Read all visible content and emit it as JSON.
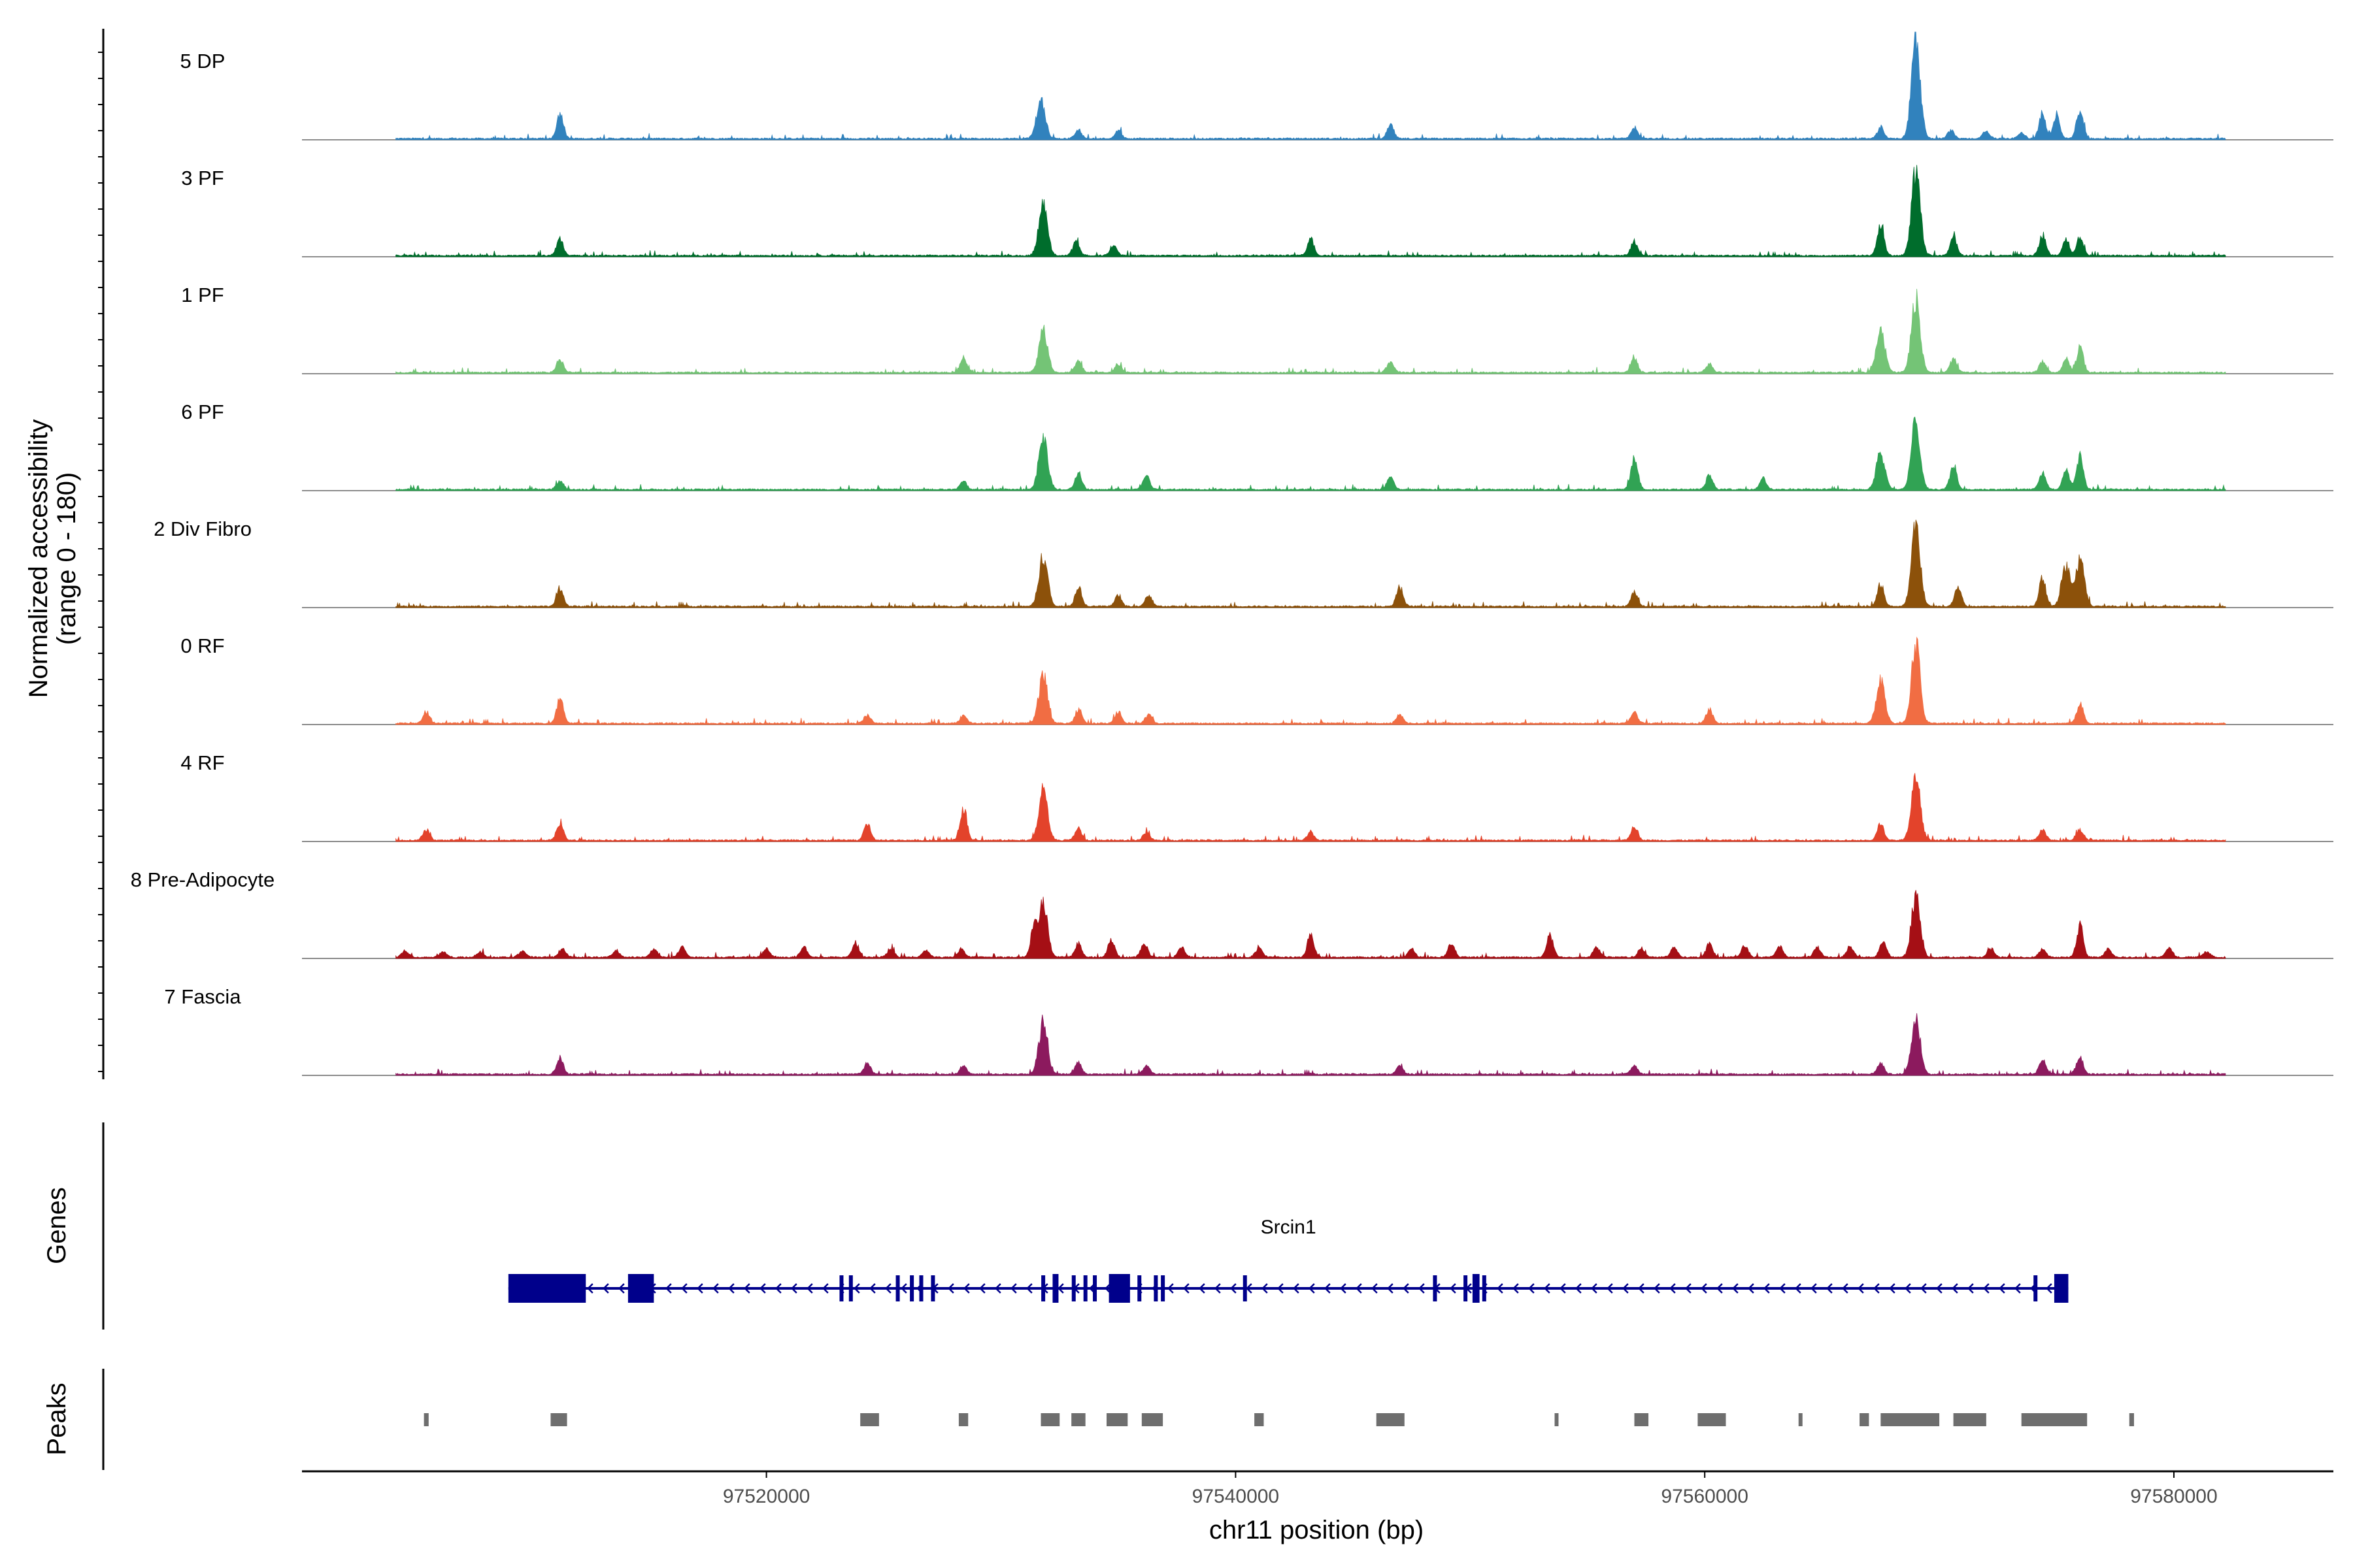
{
  "colors": {
    "baseline": "#8c8c8c",
    "axis": "#000000",
    "gene": "#00008b",
    "peak": "#6e6e6e",
    "tick_text": "#4d4d4d"
  },
  "chart_data": {
    "type": "area",
    "title": "",
    "xlabel": "chr11 position (bp)",
    "ylabel": "Normalized accessibility",
    "ylabel_sub": "(range 0 - 180)",
    "ylim": [
      0,
      180
    ],
    "xlim": [
      97500200,
      97586800
    ],
    "x_ticks": [
      97520000,
      97540000,
      97560000,
      97580000
    ],
    "x_tick_labels": [
      "97520000",
      "97540000",
      "97560000",
      "97580000"
    ],
    "coverage_extent": [
      97504200,
      97582200
    ],
    "tracks": [
      {
        "name": "5 DP",
        "color": "#3182bd",
        "peaks": [
          [
            97511200,
            45
          ],
          [
            97531700,
            70
          ],
          [
            97533300,
            15
          ],
          [
            97535000,
            15
          ],
          [
            97546600,
            25
          ],
          [
            97557000,
            20
          ],
          [
            97567500,
            20
          ],
          [
            97569000,
            180
          ],
          [
            97570500,
            15
          ],
          [
            97572000,
            15
          ],
          [
            97573500,
            10
          ],
          [
            97574400,
            45
          ],
          [
            97575000,
            42
          ],
          [
            97576000,
            50
          ]
        ]
      },
      {
        "name": "3 PF",
        "color": "#006d2c",
        "peaks": [
          [
            97511200,
            30
          ],
          [
            97531800,
            95
          ],
          [
            97533200,
            25
          ],
          [
            97534800,
            20
          ],
          [
            97543200,
            30
          ],
          [
            97557000,
            25
          ],
          [
            97567500,
            55
          ],
          [
            97569000,
            150
          ],
          [
            97570600,
            35
          ],
          [
            97574400,
            35
          ],
          [
            97575400,
            30
          ],
          [
            97576000,
            30
          ]
        ]
      },
      {
        "name": "1 PF",
        "color": "#74c476",
        "peaks": [
          [
            97511200,
            25
          ],
          [
            97528400,
            25
          ],
          [
            97531800,
            75
          ],
          [
            97533300,
            20
          ],
          [
            97535000,
            15
          ],
          [
            97546600,
            20
          ],
          [
            97557000,
            25
          ],
          [
            97560200,
            15
          ],
          [
            97567500,
            75
          ],
          [
            97569000,
            135
          ],
          [
            97570600,
            25
          ],
          [
            97574400,
            20
          ],
          [
            97575400,
            25
          ],
          [
            97576000,
            45
          ]
        ]
      },
      {
        "name": "6 PF",
        "color": "#31a354",
        "peaks": [
          [
            97511200,
            15
          ],
          [
            97528400,
            15
          ],
          [
            97531800,
            95
          ],
          [
            97533300,
            30
          ],
          [
            97536200,
            25
          ],
          [
            97546600,
            25
          ],
          [
            97557000,
            60
          ],
          [
            97560200,
            25
          ],
          [
            97562500,
            20
          ],
          [
            97567500,
            65
          ],
          [
            97569000,
            125
          ],
          [
            97570600,
            45
          ],
          [
            97574400,
            30
          ],
          [
            97575400,
            35
          ],
          [
            97576000,
            60
          ]
        ]
      },
      {
        "name": "2 Div Fibro",
        "color": "#8c510a",
        "peaks": [
          [
            97511200,
            30
          ],
          [
            97531800,
            90
          ],
          [
            97533300,
            35
          ],
          [
            97535000,
            20
          ],
          [
            97536300,
            20
          ],
          [
            97547000,
            35
          ],
          [
            97557000,
            25
          ],
          [
            97567500,
            40
          ],
          [
            97569000,
            150
          ],
          [
            97570800,
            35
          ],
          [
            97574400,
            50
          ],
          [
            97575400,
            70
          ],
          [
            97576000,
            80
          ]
        ]
      },
      {
        "name": "0 RF",
        "color": "#f16d43",
        "peaks": [
          [
            97505500,
            20
          ],
          [
            97511200,
            45
          ],
          [
            97524300,
            15
          ],
          [
            97528400,
            15
          ],
          [
            97531800,
            85
          ],
          [
            97533300,
            25
          ],
          [
            97535000,
            20
          ],
          [
            97536300,
            15
          ],
          [
            97547000,
            15
          ],
          [
            97557000,
            20
          ],
          [
            97560200,
            25
          ],
          [
            97567500,
            75
          ],
          [
            97569000,
            140
          ],
          [
            97576000,
            35
          ]
        ]
      },
      {
        "name": "4 RF",
        "color": "#e3432b",
        "peaks": [
          [
            97505500,
            20
          ],
          [
            97511200,
            30
          ],
          [
            97524300,
            30
          ],
          [
            97528400,
            60
          ],
          [
            97531800,
            90
          ],
          [
            97533300,
            20
          ],
          [
            97536200,
            15
          ],
          [
            97543200,
            15
          ],
          [
            97557000,
            25
          ],
          [
            97567500,
            30
          ],
          [
            97569000,
            115
          ],
          [
            97574400,
            20
          ],
          [
            97576000,
            20
          ]
        ]
      },
      {
        "name": "8 Pre-Adipocyte",
        "color": "#a50f15",
        "peaks": [
          [
            97504600,
            12
          ],
          [
            97506200,
            10
          ],
          [
            97507800,
            10
          ],
          [
            97509600,
            12
          ],
          [
            97511300,
            15
          ],
          [
            97513600,
            12
          ],
          [
            97515200,
            15
          ],
          [
            97516400,
            18
          ],
          [
            97520000,
            15
          ],
          [
            97521600,
            18
          ],
          [
            97523800,
            25
          ],
          [
            97525300,
            15
          ],
          [
            97526800,
            12
          ],
          [
            97528300,
            15
          ],
          [
            97531400,
            50
          ],
          [
            97531800,
            95
          ],
          [
            97533300,
            25
          ],
          [
            97534700,
            30
          ],
          [
            97536100,
            25
          ],
          [
            97537700,
            18
          ],
          [
            97541000,
            18
          ],
          [
            97543200,
            40
          ],
          [
            97547500,
            15
          ],
          [
            97549200,
            25
          ],
          [
            97553400,
            40
          ],
          [
            97555400,
            18
          ],
          [
            97557300,
            15
          ],
          [
            97558700,
            18
          ],
          [
            97560200,
            25
          ],
          [
            97561700,
            20
          ],
          [
            97563200,
            20
          ],
          [
            97564800,
            18
          ],
          [
            97566200,
            20
          ],
          [
            97567600,
            30
          ],
          [
            97569000,
            110
          ],
          [
            97572200,
            15
          ],
          [
            97574400,
            15
          ],
          [
            97576000,
            55
          ],
          [
            97577200,
            15
          ],
          [
            97579800,
            18
          ],
          [
            97581400,
            10
          ]
        ]
      },
      {
        "name": "7 Fascia",
        "color": "#8c1a5e",
        "peaks": [
          [
            97511200,
            30
          ],
          [
            97524300,
            20
          ],
          [
            97528400,
            15
          ],
          [
            97531800,
            95
          ],
          [
            97533300,
            20
          ],
          [
            97536200,
            15
          ],
          [
            97547000,
            15
          ],
          [
            97557000,
            15
          ],
          [
            97567500,
            20
          ],
          [
            97569000,
            105
          ],
          [
            97574400,
            25
          ],
          [
            97576000,
            30
          ]
        ]
      }
    ],
    "genes": [
      {
        "name": "Srcin1",
        "start": 97509000,
        "end": 97575500,
        "strand": "-",
        "exons": [
          [
            97509000,
            97512300
          ],
          [
            97514100,
            97515200
          ],
          [
            97532200,
            97532400
          ],
          [
            97534600,
            97535500
          ],
          [
            97550100,
            97550400
          ],
          [
            97574900,
            97575500
          ]
        ],
        "small_exons": [
          97523200,
          97523600,
          97525600,
          97526200,
          97526600,
          97527100,
          97531800,
          97533100,
          97533600,
          97534000,
          97535900,
          97536600,
          97536900,
          97540400,
          97548500,
          97549800,
          97550600,
          97574100
        ]
      }
    ],
    "peak_regions": [
      [
        97505400,
        97505600
      ],
      [
        97510800,
        97511500
      ],
      [
        97524000,
        97524800
      ],
      [
        97528200,
        97528600
      ],
      [
        97531700,
        97532500
      ],
      [
        97533000,
        97533600
      ],
      [
        97534500,
        97535400
      ],
      [
        97536000,
        97536900
      ],
      [
        97540800,
        97541200
      ],
      [
        97546000,
        97547200
      ],
      [
        97553600,
        97553700
      ],
      [
        97557000,
        97557600
      ],
      [
        97559700,
        97560900
      ],
      [
        97564000,
        97564100
      ],
      [
        97566600,
        97567000
      ],
      [
        97567500,
        97570000
      ],
      [
        97570600,
        97572000
      ],
      [
        97573500,
        97576300
      ],
      [
        97578100,
        97578300
      ]
    ],
    "panel_labels": {
      "coverage": "",
      "genes": "Genes",
      "peaks": "Peaks"
    }
  }
}
